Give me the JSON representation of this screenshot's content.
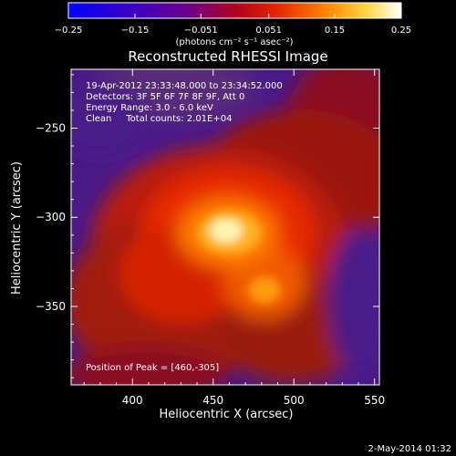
{
  "chart_data": {
    "type": "heatmap",
    "title": "Reconstructed RHESSI Image",
    "xlabel": "Heliocentric X (arcsec)",
    "ylabel": "Heliocentric Y (arcsec)",
    "xlim": [
      362,
      553
    ],
    "ylim": [
      -394,
      -217
    ],
    "xticks": [
      400,
      450,
      500,
      550
    ],
    "yticks": [
      -250,
      -300,
      -350
    ],
    "colorbar": {
      "min": -0.25,
      "max": 0.25,
      "ticks": [
        -0.25,
        -0.15,
        -0.051,
        0.051,
        0.15,
        0.25
      ],
      "tick_labels": [
        "−0.25",
        "−0.15",
        "−0.051",
        "0.051",
        "0.15",
        "0.25"
      ],
      "units": "(photons cm⁻² s⁻¹ asec⁻²)",
      "colormap": [
        "#0000ff",
        "#5a00a8",
        "#8a0040",
        "#e41a00",
        "#ff8c00",
        "#ffe060",
        "#ffffff"
      ]
    },
    "annotations": [
      "19-Apr-2012 23:33:48.000 to 23:34:52.000",
      "Detectors: 3F 5F 6F 7F 8F 9F, Att 0",
      "Energy Range: 3.0 - 6.0 keV",
      "Clean     Total counts: 2.01E+04"
    ],
    "peak_label": "Position of Peak = [460,-305]",
    "peak": {
      "x": 460,
      "y": -305
    }
  },
  "footer": {
    "timestamp": "2-May-2014 01:32"
  }
}
